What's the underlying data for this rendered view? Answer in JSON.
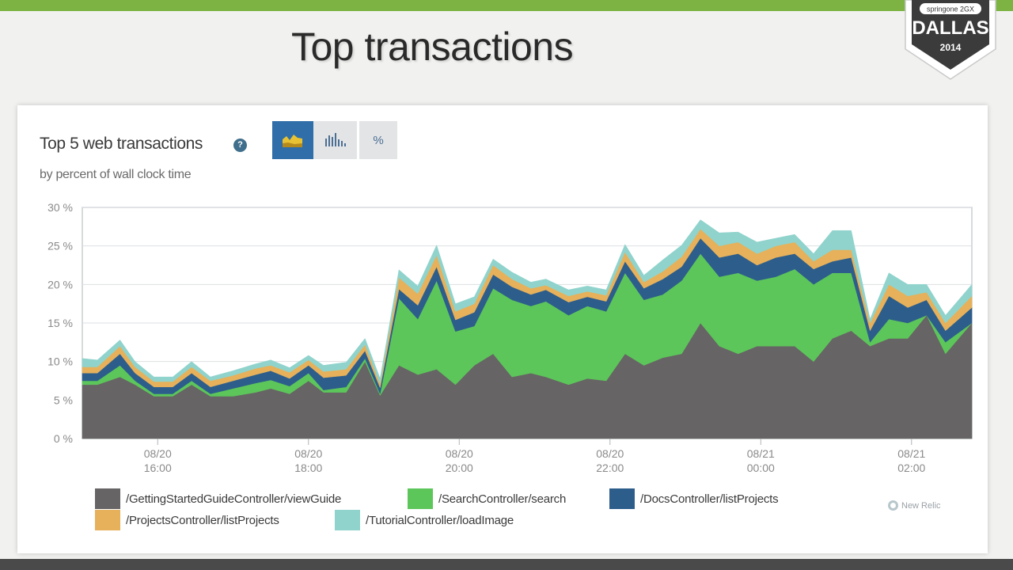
{
  "slide": {
    "title": "Top transactions"
  },
  "badge": {
    "brand": "springone 2GX",
    "city": "DALLAS",
    "year": "2014"
  },
  "panel": {
    "title": "Top 5 web transactions",
    "help_icon": "question-icon",
    "subtitle": "by percent of wall clock time",
    "view_buttons": [
      {
        "icon": "area-chart-icon",
        "active": true
      },
      {
        "icon": "bar-chart-icon",
        "active": false
      },
      {
        "label": "%",
        "active": false
      }
    ],
    "watermark": "New Relic"
  },
  "colors": {
    "accent_bar": "#7cb342",
    "button_active": "#2f6ea8"
  },
  "chart_data": {
    "type": "area",
    "stacked": true,
    "title": "Top 5 web transactions",
    "subtitle": "by percent of wall clock time",
    "ylim": [
      0,
      30
    ],
    "yticks": [
      "0 %",
      "5 %",
      "10 %",
      "15 %",
      "20 %",
      "25 %",
      "30 %"
    ],
    "ytick_values": [
      0,
      5,
      10,
      15,
      20,
      25,
      30
    ],
    "x_range_hours": [
      15.0,
      26.8
    ],
    "xticks": [
      {
        "date": "08/20",
        "time": "16:00",
        "hour": 16
      },
      {
        "date": "08/20",
        "time": "18:00",
        "hour": 18
      },
      {
        "date": "08/20",
        "time": "20:00",
        "hour": 20
      },
      {
        "date": "08/20",
        "time": "22:00",
        "hour": 22
      },
      {
        "date": "08/21",
        "time": "00:00",
        "hour": 24
      },
      {
        "date": "08/21",
        "time": "02:00",
        "hour": 26
      }
    ],
    "grid": true,
    "legend_position": "bottom",
    "x": [
      15.0,
      15.2,
      15.5,
      15.7,
      15.95,
      16.2,
      16.45,
      16.7,
      17.0,
      17.3,
      17.5,
      17.75,
      18.0,
      18.2,
      18.5,
      18.75,
      18.95,
      19.2,
      19.45,
      19.7,
      19.95,
      20.2,
      20.45,
      20.7,
      20.95,
      21.15,
      21.45,
      21.7,
      21.95,
      22.2,
      22.45,
      22.7,
      22.95,
      23.2,
      23.45,
      23.7,
      23.95,
      24.2,
      24.45,
      24.7,
      24.95,
      25.2,
      25.45,
      25.7,
      25.95,
      26.2,
      26.45,
      26.8
    ],
    "series": [
      {
        "name": "/GettingStartedGuideController/viewGuide",
        "color": "#666464",
        "values": [
          7,
          7,
          8,
          7,
          5.5,
          5.5,
          7,
          5.5,
          5.5,
          6,
          6.5,
          5.8,
          7.5,
          6,
          6,
          10,
          5.6,
          9.5,
          8.3,
          9,
          7,
          9.5,
          11,
          8,
          8.5,
          8,
          7,
          7.8,
          7.5,
          11,
          9.5,
          10.5,
          11,
          15,
          12,
          11,
          12,
          12,
          12,
          10,
          13,
          14,
          12,
          13,
          13,
          16,
          11,
          15
        ]
      },
      {
        "name": "/SearchController/search",
        "color": "#5cc65a",
        "values": [
          0.5,
          0.5,
          1.5,
          0.5,
          0.3,
          0.3,
          0.5,
          0.3,
          1,
          1.2,
          1.1,
          1,
          1,
          0.3,
          0.7,
          0.4,
          0.2,
          8.7,
          7.2,
          11.5,
          6.9,
          5.1,
          8.5,
          10,
          8.7,
          9.8,
          9,
          9.4,
          9,
          10.5,
          8.5,
          8.2,
          9.5,
          9,
          9,
          10.5,
          8.5,
          9,
          10,
          10,
          8.5,
          7.5,
          0.5,
          2.5,
          2,
          0,
          1.5,
          0
        ]
      },
      {
        "name": "/DocsController/listProjects",
        "color": "#2d5d8b",
        "values": [
          1,
          1,
          1.5,
          1,
          0.9,
          0.9,
          1,
          0.9,
          1,
          1.1,
          1.2,
          1,
          1,
          1.6,
          1.5,
          1,
          0.8,
          1.2,
          1.8,
          1.8,
          1.5,
          1.8,
          1.8,
          1.7,
          1.5,
          1.5,
          1.7,
          1.2,
          1.3,
          1.5,
          1.5,
          2,
          1.8,
          2,
          2.5,
          2.5,
          2,
          2.5,
          2,
          2,
          1.5,
          2,
          1.5,
          3,
          2,
          2,
          1.5,
          2
        ]
      },
      {
        "name": "/ProjectsController/listProjects",
        "color": "#e6b15a",
        "values": [
          0.8,
          0.8,
          1,
          0.8,
          0.7,
          0.7,
          0.8,
          0.8,
          0.7,
          0.8,
          0.7,
          0.8,
          0.7,
          0.8,
          0.8,
          0.8,
          0.5,
          1.5,
          1.5,
          1.5,
          1.1,
          1.1,
          1.2,
          1,
          0.8,
          0.6,
          0.8,
          0.7,
          0.8,
          1.2,
          0.8,
          1,
          1.3,
          1.2,
          1.5,
          1.5,
          1.5,
          1.5,
          1.5,
          1,
          1.5,
          1,
          1,
          1.5,
          1.5,
          1,
          1,
          1.5
        ]
      },
      {
        "name": "/TutorialController/loadImage",
        "color": "#8fd3cc",
        "values": [
          1.1,
          0.9,
          0.8,
          0.7,
          0.6,
          0.6,
          0.7,
          0.5,
          0.6,
          0.6,
          0.7,
          0.6,
          0.6,
          0.8,
          0.9,
          0.8,
          0.7,
          1,
          1,
          1.3,
          1,
          0.9,
          0.8,
          0.9,
          0.8,
          0.8,
          0.8,
          0.7,
          0.7,
          1,
          0.9,
          1.5,
          1.5,
          1.2,
          1.7,
          1.3,
          1.5,
          1,
          1,
          1,
          2.5,
          2.5,
          0.5,
          1.5,
          1.5,
          1,
          1,
          1.5
        ]
      }
    ]
  }
}
